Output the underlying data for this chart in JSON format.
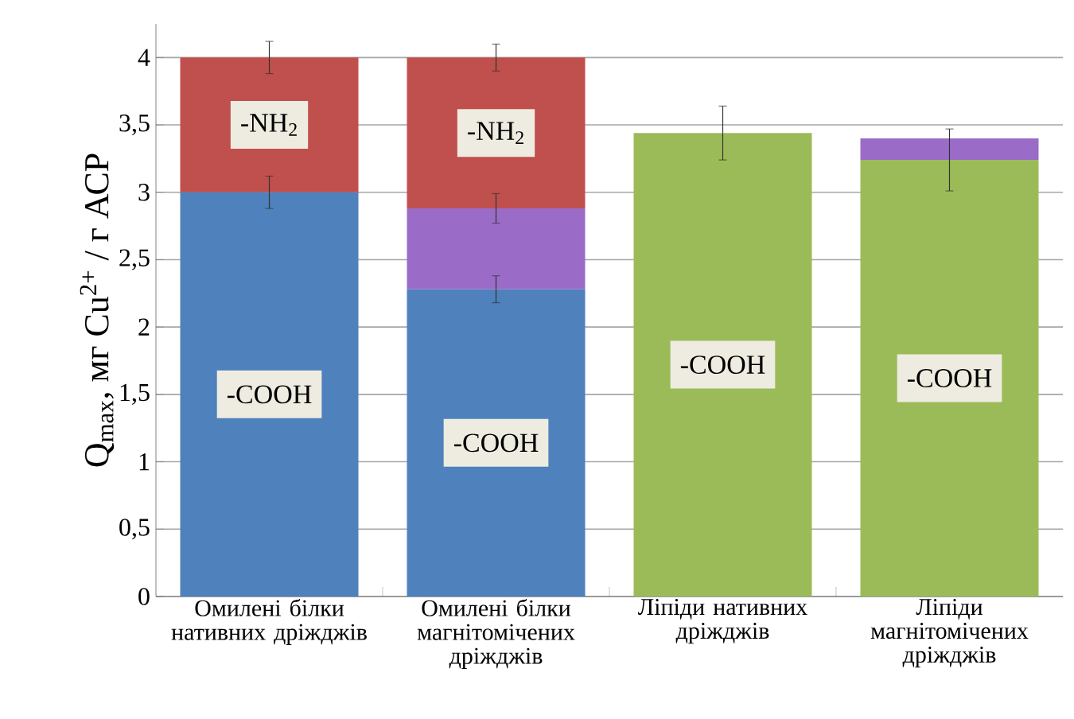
{
  "chart_data": {
    "type": "bar",
    "stacked": true,
    "ylabel": "Q$_{max}$, мг Cu$^{2+}$ / г АСР",
    "categories": [
      "Омилені білки нативних дріжджів",
      "Омилені білки магнітомічених дріжджів",
      "Ліпіди нативних дріжджів",
      "Ліпіди магнітомічених дріжджів"
    ],
    "series": [
      {
        "colors": [
          "#4f81bd",
          "#4f81bd",
          "#9bbb59",
          "#9bbb59"
        ],
        "values": [
          3.0,
          2.28,
          3.44,
          3.24
        ],
        "errors": [
          0.12,
          0.1,
          0.2,
          0.23
        ],
        "name": "-COOH"
      },
      {
        "color": "#9a6cc8",
        "values": [
          0,
          0.6,
          0,
          0.16
        ],
        "errors": [
          null,
          0.11,
          null,
          null
        ]
      },
      {
        "color": "#c0504d",
        "values": [
          1.0,
          1.12,
          0,
          0
        ],
        "errors": [
          0.12,
          0.1,
          null,
          null
        ],
        "name": "-NH$_{2}$"
      }
    ],
    "ylim": [
      0,
      4.25
    ],
    "yticks": [
      0,
      {
        "value": 0.5,
        "label": "0,5"
      },
      1,
      {
        "value": 1.5,
        "label": "1,5"
      },
      2,
      {
        "value": 2.5,
        "label": "2,5"
      },
      3,
      {
        "value": 3.5,
        "label": "3,5"
      },
      4
    ],
    "grid": "y"
  }
}
